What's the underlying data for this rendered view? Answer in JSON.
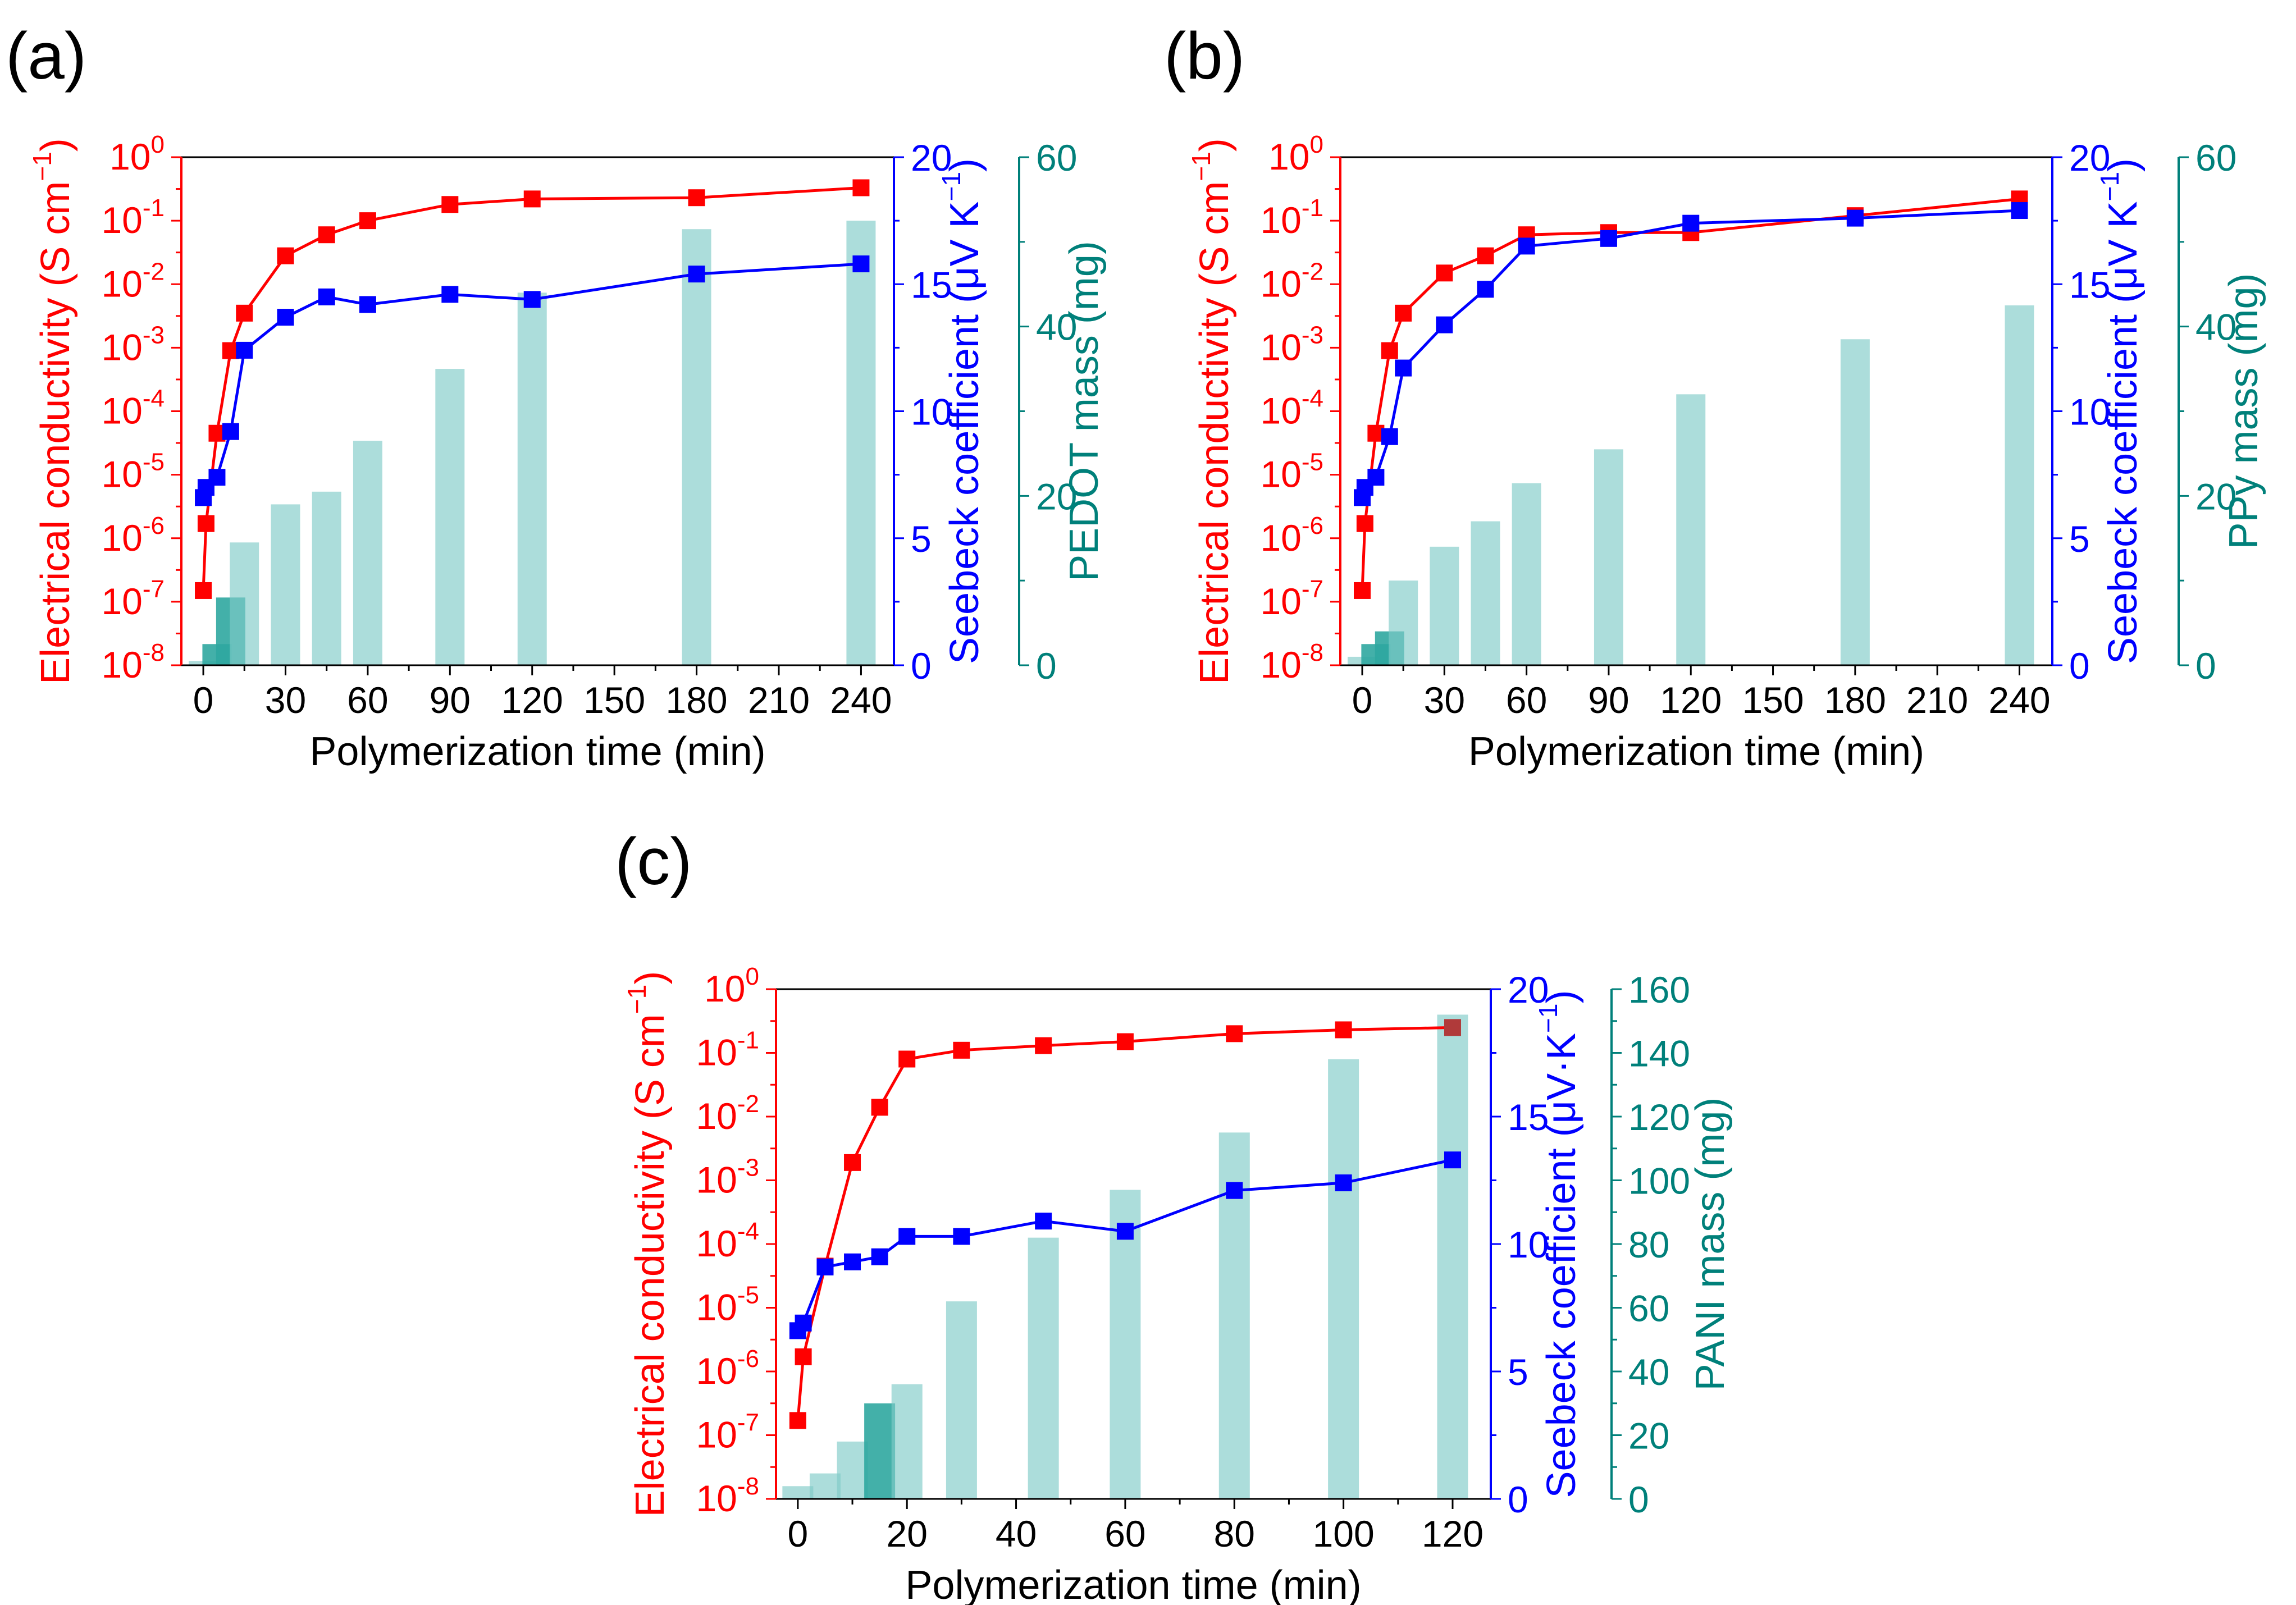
{
  "colors": {
    "conductivity": "#ff0000",
    "seebeck": "#0000ff",
    "mass": "#00807a",
    "bar_fill": "#80cbc8",
    "axis": "#000000"
  },
  "shared": {
    "xlabel": "Polymerization time (min)",
    "left_ylabel": "Electrical conductivity (S cm",
    "left_tick_labels": [
      "10",
      "10",
      "10",
      "10",
      "10",
      "10",
      "10",
      "10",
      "10"
    ],
    "left_tick_exponents": [
      "0",
      "-1",
      "-2",
      "-3",
      "-4",
      "-5",
      "-6",
      "-7",
      "-8"
    ]
  },
  "chart_data": [
    {
      "type": "combo",
      "panel_label": "(a)",
      "x_ticks": [
        0,
        30,
        60,
        90,
        120,
        150,
        180,
        210,
        240
      ],
      "xlim": [
        -8,
        252
      ],
      "conductivity": {
        "scale": "log",
        "ylim": [
          1e-08,
          1
        ],
        "x": [
          0,
          1,
          5,
          10,
          15,
          30,
          45,
          60,
          90,
          120,
          180,
          240
        ],
        "y": [
          1.5e-07,
          1.7e-06,
          4.5e-05,
          0.0009,
          0.0035,
          0.028,
          0.06,
          0.1,
          0.18,
          0.22,
          0.23,
          0.33
        ]
      },
      "seebeck": {
        "ylabel": "Seebeck coefficient (μV K",
        "ylabel_exp": "−1",
        "ylabel_close": ")",
        "ylim": [
          0,
          20
        ],
        "ticks": [
          0,
          5,
          10,
          15,
          20
        ],
        "x": [
          0,
          1,
          5,
          10,
          15,
          30,
          45,
          60,
          90,
          120,
          180,
          240
        ],
        "y": [
          6.6,
          7.0,
          7.4,
          9.2,
          12.4,
          13.7,
          14.5,
          14.2,
          14.6,
          14.4,
          15.4,
          15.8
        ]
      },
      "mass": {
        "ylabel": "PEDOT mass (mg)",
        "ylim": [
          0,
          60
        ],
        "ticks": [
          0,
          20,
          40,
          60
        ],
        "x": [
          0,
          5,
          10,
          15,
          30,
          45,
          60,
          90,
          120,
          180,
          240
        ],
        "y": [
          0.5,
          2.5,
          8,
          14.5,
          19,
          20.5,
          26.5,
          35,
          44,
          51.5,
          52.5
        ],
        "dark": [
          false,
          true,
          true,
          false,
          false,
          false,
          false,
          false,
          false,
          false,
          false
        ]
      }
    },
    {
      "type": "combo",
      "panel_label": "(b)",
      "x_ticks": [
        0,
        30,
        60,
        90,
        120,
        150,
        180,
        210,
        240
      ],
      "xlim": [
        -8,
        252
      ],
      "conductivity": {
        "scale": "log",
        "ylim": [
          1e-08,
          1
        ],
        "x": [
          0,
          1,
          5,
          10,
          15,
          30,
          45,
          60,
          90,
          120,
          180,
          240
        ],
        "y": [
          1.5e-07,
          1.7e-06,
          4.5e-05,
          0.0009,
          0.0035,
          0.015,
          0.028,
          0.06,
          0.065,
          0.065,
          0.12,
          0.22
        ]
      },
      "seebeck": {
        "ylabel": "Seebeck coefficient (μV K",
        "ylabel_exp": "−1",
        "ylabel_close": ")",
        "ylim": [
          0,
          20
        ],
        "ticks": [
          0,
          5,
          10,
          15,
          20
        ],
        "x": [
          0,
          1,
          5,
          10,
          15,
          30,
          45,
          60,
          90,
          120,
          180,
          240
        ],
        "y": [
          6.6,
          7.0,
          7.4,
          9.0,
          11.7,
          13.4,
          14.8,
          16.5,
          16.8,
          17.4,
          17.6,
          17.9
        ]
      },
      "mass": {
        "ylabel": "PPy mass (mg)",
        "ylim": [
          0,
          60
        ],
        "ticks": [
          0,
          20,
          40,
          60
        ],
        "x": [
          0,
          5,
          10,
          15,
          30,
          45,
          60,
          90,
          120,
          180,
          240
        ],
        "y": [
          1.0,
          2.5,
          4,
          10,
          14,
          17,
          21.5,
          25.5,
          32,
          38.5,
          42.5
        ],
        "dark": [
          false,
          true,
          true,
          false,
          false,
          false,
          false,
          false,
          false,
          false,
          false
        ]
      }
    },
    {
      "type": "combo",
      "panel_label": "(c)",
      "x_ticks": [
        0,
        20,
        40,
        60,
        80,
        100,
        120
      ],
      "xlim": [
        -4,
        127
      ],
      "conductivity": {
        "scale": "log",
        "ylim": [
          1e-08,
          1
        ],
        "x": [
          0,
          1,
          5,
          10,
          15,
          20,
          30,
          45,
          60,
          80,
          100,
          120
        ],
        "y": [
          1.7e-07,
          1.7e-06,
          4.5e-05,
          0.0019,
          0.014,
          0.08,
          0.11,
          0.13,
          0.15,
          0.2,
          0.23,
          0.25
        ]
      },
      "seebeck": {
        "ylabel": "Seebeck coefficient (μV·K",
        "ylabel_exp": "−1",
        "ylabel_close": ")",
        "ylim": [
          0,
          20
        ],
        "ticks": [
          0,
          5,
          10,
          15,
          20
        ],
        "x": [
          0,
          1,
          5,
          10,
          15,
          20,
          30,
          45,
          60,
          80,
          100,
          120
        ],
        "y": [
          6.6,
          6.9,
          9.1,
          9.3,
          9.5,
          10.3,
          10.3,
          10.9,
          10.5,
          12.1,
          12.4,
          13.3
        ]
      },
      "mass": {
        "ylabel": "PANI mass (mg)",
        "ylim": [
          0,
          160
        ],
        "ticks": [
          0,
          20,
          40,
          60,
          80,
          100,
          120,
          140,
          160
        ],
        "x": [
          0,
          5,
          10,
          15,
          20,
          30,
          45,
          60,
          80,
          100,
          120
        ],
        "y": [
          4,
          8,
          18,
          30,
          36,
          62,
          82,
          97,
          115,
          138,
          152
        ],
        "dark": [
          false,
          false,
          false,
          true,
          false,
          false,
          false,
          false,
          false,
          false,
          false
        ]
      }
    }
  ]
}
